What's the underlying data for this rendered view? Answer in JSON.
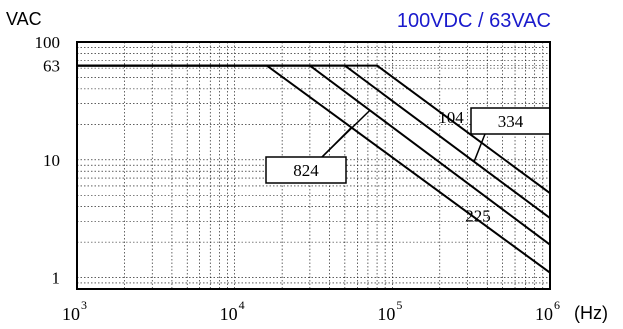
{
  "chart_data": {
    "type": "line",
    "title": "100VDC / 63VAC",
    "title_color": "#1a1acc",
    "ylabel": "VAC",
    "xunit": "(Hz)",
    "xscale": "log",
    "yscale": "log",
    "xlim": [
      1000,
      1000000
    ],
    "ylim": [
      0.8,
      100
    ],
    "grid": true,
    "yticks": [
      {
        "value": 100,
        "label": "100"
      },
      {
        "value": 63,
        "label": "63"
      },
      {
        "value": 10,
        "label": "10"
      },
      {
        "value": 1,
        "label": "1"
      }
    ],
    "xticks": [
      {
        "value": 1000,
        "base": "10",
        "exp": "3"
      },
      {
        "value": 10000,
        "base": "10",
        "exp": "4"
      },
      {
        "value": 100000,
        "base": "10",
        "exp": "5"
      },
      {
        "value": 1000000,
        "base": "10",
        "exp": "6"
      }
    ],
    "series": [
      {
        "name": "225",
        "points": [
          [
            1000,
            63
          ],
          [
            16000,
            63
          ],
          [
            1000000,
            1.1
          ]
        ]
      },
      {
        "name": "824",
        "points": [
          [
            1000,
            63
          ],
          [
            30000,
            63
          ],
          [
            1000000,
            1.9
          ]
        ]
      },
      {
        "name": "334",
        "points": [
          [
            1000,
            63
          ],
          [
            50000,
            63
          ],
          [
            1000000,
            3.2
          ]
        ]
      },
      {
        "name": "104",
        "points": [
          [
            1000,
            63
          ],
          [
            80000,
            63
          ],
          [
            1000000,
            5.2
          ]
        ]
      }
    ],
    "annotations": [
      {
        "series": "104",
        "text": "104",
        "boxed": false
      },
      {
        "series": "334",
        "text": "334",
        "boxed": true
      },
      {
        "series": "824",
        "text": "824",
        "boxed": true
      },
      {
        "series": "225",
        "text": "225",
        "boxed": false
      }
    ]
  }
}
